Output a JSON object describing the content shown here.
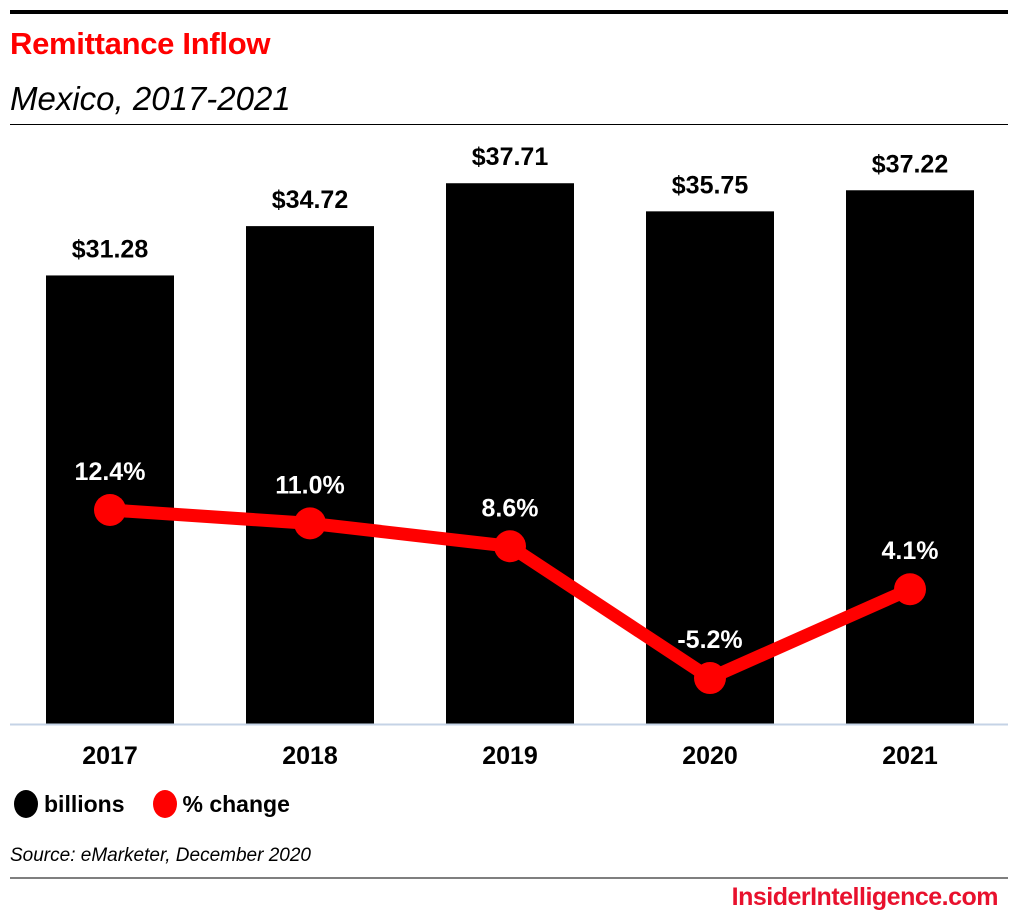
{
  "chart_data": {
    "type": "bar",
    "title": "Remittance Inflow",
    "subtitle": "Mexico, 2017-2021",
    "categories": [
      "2017",
      "2018",
      "2019",
      "2020",
      "2021"
    ],
    "series": [
      {
        "name": "billions",
        "kind": "bar",
        "color": "#000000",
        "values": [
          31.28,
          34.72,
          37.71,
          35.75,
          37.22
        ],
        "labels": [
          "$31.28",
          "$34.72",
          "$37.71",
          "$35.75",
          "$37.22"
        ]
      },
      {
        "name": "% change",
        "kind": "line",
        "color": "#ff0000",
        "values": [
          12.4,
          11.0,
          8.6,
          -5.2,
          4.1
        ],
        "labels": [
          "12.4%",
          "11.0%",
          "8.6%",
          "-5.2%",
          "4.1%"
        ]
      }
    ],
    "xlabel": "",
    "ylabel": "",
    "grid": false,
    "legend_position": "bottom-left",
    "source": "Source: eMarketer, December 2020"
  },
  "header": {
    "title": "Remittance Inflow",
    "subtitle": "Mexico, 2017-2021"
  },
  "legend": {
    "items": [
      {
        "label": "billions",
        "color": "#000000"
      },
      {
        "label": "% change",
        "color": "#ff0000"
      }
    ]
  },
  "footer": {
    "source": "Source: eMarketer, December 2020",
    "brand": "InsiderIntelligence.com",
    "brand_color": "#e8112d"
  }
}
